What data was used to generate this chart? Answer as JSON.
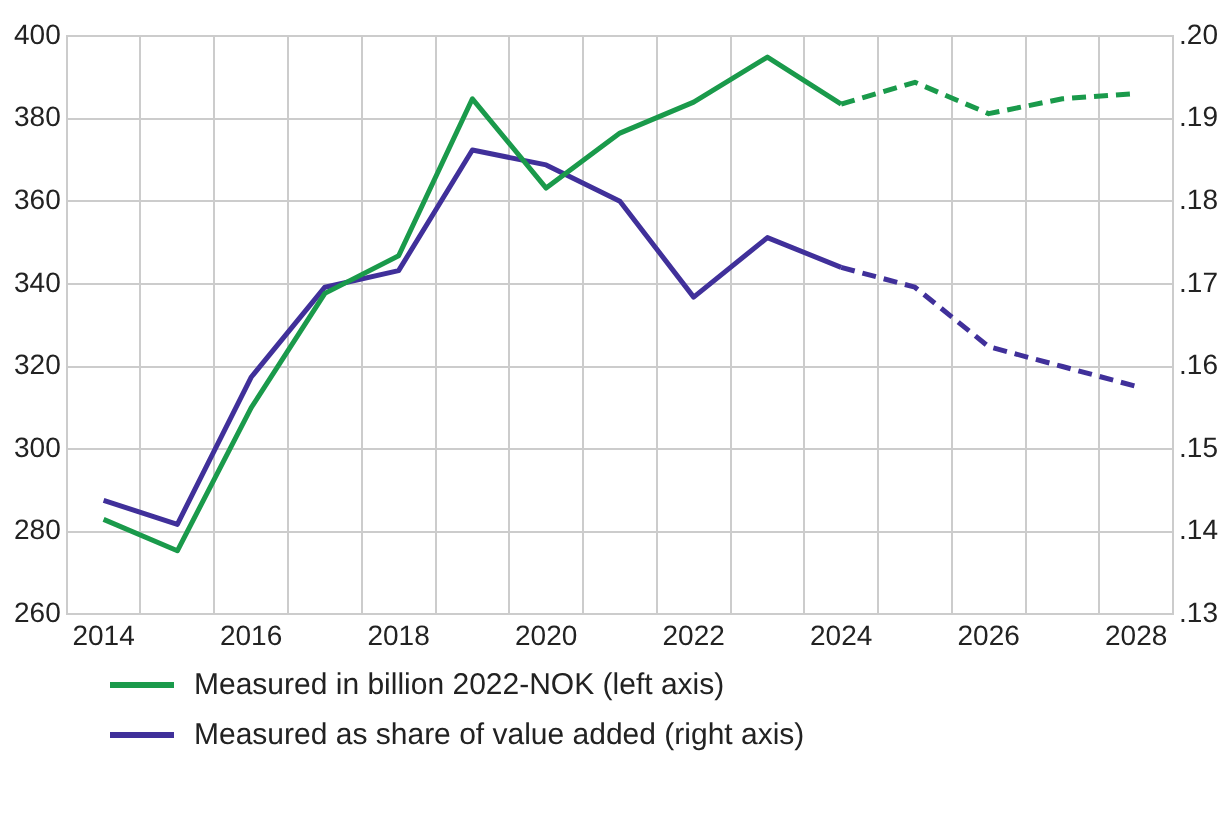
{
  "chart_data": {
    "type": "line",
    "categories": [
      "2014",
      null,
      "2016",
      null,
      "2018",
      null,
      "2020",
      null,
      "2022",
      null,
      "2024",
      null,
      "2026",
      null,
      "2028"
    ],
    "series": [
      {
        "name": "Measured in billion 2022-NOK (left axis)",
        "color": "#1a9a4b",
        "line_style": "solid",
        "values": [
          283,
          275.4,
          310,
          337.7,
          346.8,
          384.8,
          363.2,
          376.5,
          384,
          394.9,
          383.5,
          null,
          null,
          null,
          null
        ]
      },
      {
        "name": "Measured as share of value added (right axis)",
        "color": "#40309a",
        "axis": "y2",
        "line_style": "solid",
        "values": [
          0.1438,
          0.1409,
          0.1587,
          0.1696,
          0.1716,
          0.1862,
          0.1844,
          0.18,
          0.1684,
          0.1756,
          0.172,
          null,
          null,
          null,
          null
        ]
      },
      {
        "color": "#1a9a4b",
        "line_style": "dashed",
        "values": [
          null,
          null,
          null,
          null,
          null,
          null,
          null,
          null,
          null,
          null,
          383.5,
          388.8,
          381.2,
          384.8,
          386.1
        ]
      },
      {
        "color": "#40309a",
        "axis": "y2",
        "line_style": "dashed",
        "values": [
          null,
          null,
          null,
          null,
          null,
          null,
          null,
          null,
          null,
          null,
          0.172,
          0.1696,
          0.1624,
          0.16,
          0.1576
        ]
      }
    ],
    "ylim": [
      260,
      400
    ],
    "yticks": [
      260,
      280,
      300,
      320,
      340,
      360,
      380,
      400
    ],
    "y2lim": [
      0.13,
      0.2
    ],
    "y2ticks": [
      {
        "value": 0.13,
        "label": ".13"
      },
      {
        "value": 0.14,
        "label": ".14"
      },
      {
        "value": 0.15,
        "label": ".15"
      },
      {
        "value": 0.16,
        "label": ".16"
      },
      {
        "value": 0.17,
        "label": ".17"
      },
      {
        "value": 0.18,
        "label": ".18"
      },
      {
        "value": 0.19,
        "label": ".19"
      },
      {
        "value": 0.2,
        "label": ".20"
      }
    ],
    "grid": true,
    "legend": "bottom",
    "marker": "none"
  }
}
